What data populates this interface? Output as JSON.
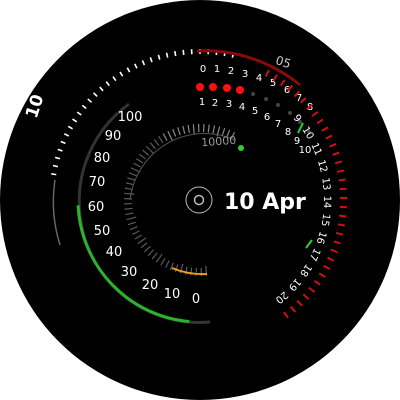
{
  "watch_face": {
    "hour": "10",
    "date_text": "10 Apr",
    "minute_marker": "05",
    "steps_gauge": {
      "labels": [
        "0",
        "10",
        "20",
        "30",
        "40",
        "50",
        "60",
        "70",
        "80",
        "90",
        "100"
      ],
      "level_percent": 75
    },
    "distance_gauge": {
      "label": "10000",
      "level_fraction": 0.1
    },
    "hours_row": [
      "0",
      "1",
      "2",
      "3",
      "4",
      "5",
      "6",
      "7",
      "8"
    ],
    "dots_row": [
      "1",
      "2",
      "3",
      "4",
      "5",
      "6",
      "7",
      "8",
      "9",
      "10"
    ],
    "active_dots": 4,
    "right_scale": [
      "9",
      "10",
      "11",
      "12",
      "13",
      "14",
      "15",
      "16",
      "17",
      "18",
      "19",
      "20"
    ]
  },
  "colors": {
    "background": "#000000",
    "green": "#2bb32b",
    "red": "#d01010",
    "orange": "#f0a020",
    "gray": "#8a8a8a",
    "dark_gray": "#3a3a3a",
    "text": "#ffffff"
  }
}
